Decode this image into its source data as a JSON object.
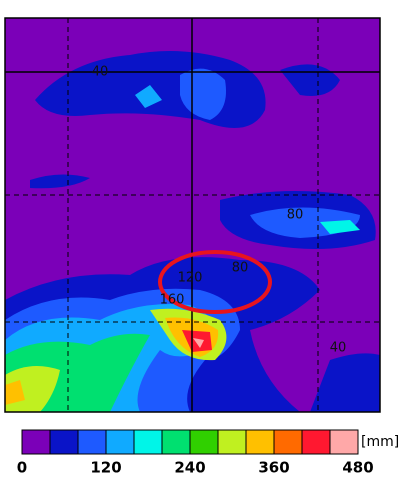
{
  "map": {
    "contour_labels": [
      "40",
      "80",
      "80",
      "120",
      "160",
      "40"
    ]
  },
  "colorbar": {
    "colors": [
      "#7b00b8",
      "#0a14c8",
      "#1e5aff",
      "#10aaff",
      "#00f5e8",
      "#00e070",
      "#30d000",
      "#c0f020",
      "#ffc000",
      "#ff6a00",
      "#ff1830",
      "#ffa8a8"
    ],
    "ticks": [
      0,
      120,
      240,
      360,
      480
    ],
    "unit": "[mm]"
  }
}
